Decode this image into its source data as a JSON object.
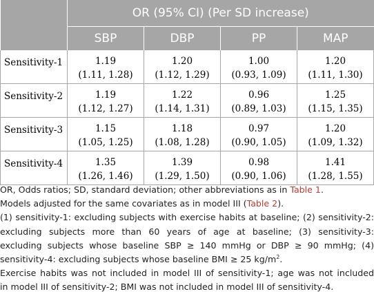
{
  "table": {
    "header_title": "OR (95% CI) (Per SD increase)",
    "columns": [
      "SBP",
      "DBP",
      "PP",
      "MAP"
    ],
    "rows": [
      {
        "label": "Sensitivity-1",
        "values": [
          {
            "or": "1.19",
            "ci": "(1.11, 1.28)"
          },
          {
            "or": "1.20",
            "ci": "(1.12, 1.29)"
          },
          {
            "or": "1.00",
            "ci": "(0.93, 1.09)"
          },
          {
            "or": "1.20",
            "ci": "(1.11, 1.30)"
          }
        ]
      },
      {
        "label": "Sensitivity-2",
        "values": [
          {
            "or": "1.19",
            "ci": "(1.12, 1.27)"
          },
          {
            "or": "1.22",
            "ci": "(1.14, 1.31)"
          },
          {
            "or": "0.96",
            "ci": "(0.89, 1.03)"
          },
          {
            "or": "1.25",
            "ci": "(1.15, 1.35)"
          }
        ]
      },
      {
        "label": "Sensitivity-3",
        "values": [
          {
            "or": "1.15",
            "ci": "(1.05, 1.25)"
          },
          {
            "or": "1.18",
            "ci": "(1.08, 1.28)"
          },
          {
            "or": "0.97",
            "ci": "(0.90, 1.05)"
          },
          {
            "or": "1.20",
            "ci": "(1.09, 1.32)"
          }
        ]
      },
      {
        "label": "Sensitivity-4",
        "values": [
          {
            "or": "1.35",
            "ci": "(1.26, 1.46)"
          },
          {
            "or": "1.39",
            "ci": "(1.29, 1.50)"
          },
          {
            "or": "0.98",
            "ci": "(0.90, 1.06)"
          },
          {
            "or": "1.41",
            "ci": "(1.28, 1.55)"
          }
        ]
      }
    ]
  },
  "notes": {
    "line1_prefix": "OR, Odds ratios; SD, standard deviation; other abbreviations as in ",
    "line1_link": "Table 1",
    "line1_suffix": ".",
    "line2_prefix": "Models adjusted for the same covariates as in model III (",
    "line2_link": "Table 2",
    "line2_suffix": ").",
    "para3_l1": "(1) sensitivity-1: excluding subjects with exercise habits at baseline; (2) sensitivity-2:",
    "para3_l2": "excluding subjects more than 60 years of age at baseline; (3) sensitivity-3:",
    "para3_l3": "excluding subjects whose baseline SBP ≥ 140 mmHg or DBP ≥ 90 mmHg; (4)",
    "para3_l4": "sensitivity-4: excluding subjects whose baseline BMI ≥ 25 kg/m",
    "para3_sup": "2",
    "para3_end": ".",
    "para4_l1": "Exercise habits was not included in model III of sensitivity-1; age was not included",
    "para4_l2": "in model III of sensitivity-2; BMI was not included in model III of sensitivity-4."
  },
  "colors": {
    "header_bg": "#a6a6a6",
    "link": "#c0392b",
    "border": "#a6a6a6"
  }
}
